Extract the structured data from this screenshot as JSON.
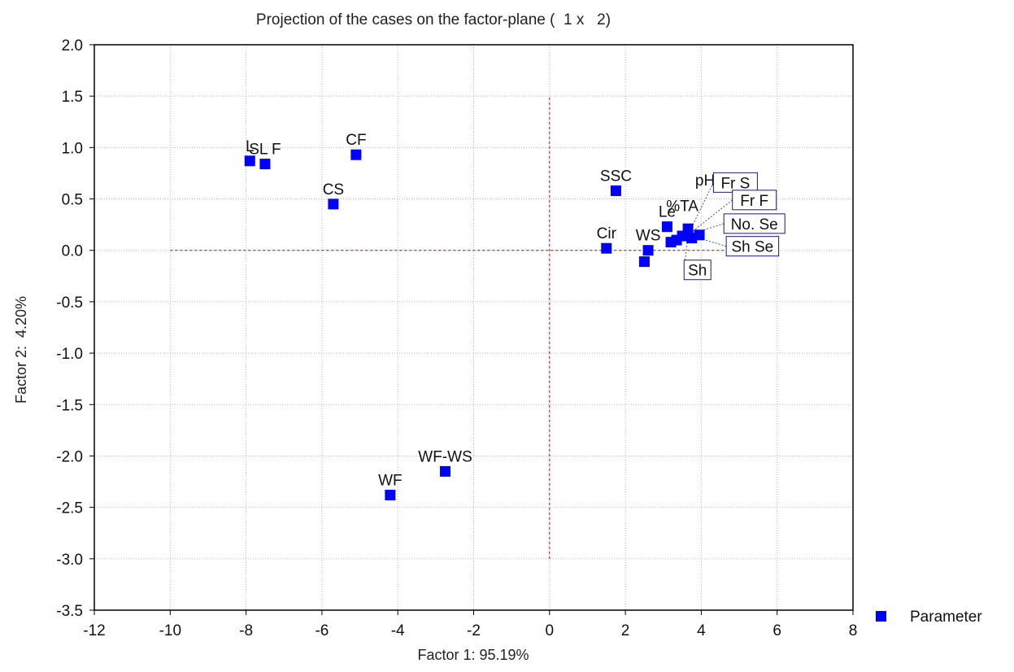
{
  "chart_data": {
    "type": "scatter",
    "title": "Projection of the cases on the factor-plane (  1 x   2)",
    "xlabel": "Factor 1: 95.19%",
    "ylabel": "Factor 2:  4.20%",
    "xlim": [
      -12,
      8
    ],
    "ylim": [
      -3.5,
      2.0
    ],
    "x_ticks": [
      -12,
      -10,
      -8,
      -6,
      -4,
      -2,
      0,
      2,
      4,
      6,
      8
    ],
    "y_ticks": [
      2.0,
      1.5,
      1.0,
      0.5,
      0.0,
      -0.5,
      -1.0,
      -1.5,
      -2.0,
      -2.5,
      -3.0,
      -3.5
    ],
    "x_tick_labels": [
      "-12",
      "-10",
      "-8",
      "-6",
      "-4",
      "-2",
      "0",
      "2",
      "4",
      "6",
      "8"
    ],
    "y_tick_labels": [
      "2.0",
      "1.5",
      "1.0",
      "0.5",
      "0.0",
      "-0.5",
      "-1.0",
      "-1.5",
      "-2.0",
      "-2.5",
      "-3.0",
      "-3.5"
    ],
    "grid": true,
    "marker_color": "#0000ff",
    "reference_line_color": "#c00000",
    "reference_lines": {
      "horizontal": {
        "y": 0,
        "x_from": -10,
        "x_to": 6
      },
      "vertical": {
        "x": 0,
        "y_from": -3,
        "y_to": 1.5
      }
    },
    "legend": {
      "position": "right",
      "entries": [
        "Parameter"
      ]
    },
    "series": [
      {
        "name": "Parameter",
        "points": [
          {
            "label": "L",
            "x": -7.9,
            "y": 0.87
          },
          {
            "label": "SL F",
            "x": -7.5,
            "y": 0.84
          },
          {
            "label": "CF",
            "x": -5.1,
            "y": 0.93
          },
          {
            "label": "CS",
            "x": -5.7,
            "y": 0.45
          },
          {
            "label": "WF-WS",
            "x": -2.75,
            "y": -2.15
          },
          {
            "label": "WF",
            "x": -4.2,
            "y": -2.38
          },
          {
            "label": "SSC",
            "x": 1.75,
            "y": 0.58
          },
          {
            "label": "Cir",
            "x": 1.5,
            "y": 0.02
          },
          {
            "label": "WS",
            "x": 2.6,
            "y": 0.0
          },
          {
            "label": "",
            "x": 2.5,
            "y": -0.11
          },
          {
            "label": "Le",
            "x": 3.1,
            "y": 0.23
          },
          {
            "label": "",
            "x": 3.2,
            "y": 0.08
          },
          {
            "label": "",
            "x": 3.35,
            "y": 0.1
          },
          {
            "label": "",
            "x": 3.5,
            "y": 0.14
          },
          {
            "label": "",
            "x": 3.65,
            "y": 0.21
          },
          {
            "label": "",
            "x": 3.75,
            "y": 0.12
          },
          {
            "label": "",
            "x": 3.95,
            "y": 0.15
          }
        ],
        "text_labels": [
          {
            "label": "pH",
            "x": 4.1,
            "y": 0.68
          },
          {
            "label": "%TA",
            "x": 3.5,
            "y": 0.43
          }
        ],
        "boxed_labels": [
          {
            "label": "Fr S",
            "x": 4.9,
            "y": 0.66
          },
          {
            "label": "Fr F",
            "x": 5.4,
            "y": 0.49
          },
          {
            "label": "No. Se",
            "x": 5.4,
            "y": 0.26
          },
          {
            "label": "Sh Se",
            "x": 5.35,
            "y": 0.04
          },
          {
            "label": "Sh",
            "x": 3.9,
            "y": -0.19
          }
        ]
      }
    ]
  }
}
